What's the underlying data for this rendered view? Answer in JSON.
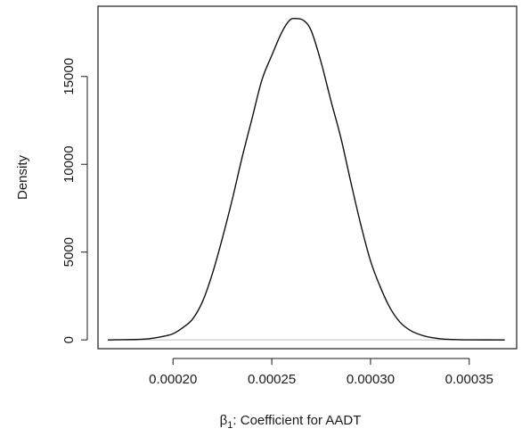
{
  "chart_data": {
    "type": "line",
    "title": "",
    "xlabel_symbol": "β",
    "xlabel_subscript": "1",
    "xlabel_rest": ": Coefficient for AADT",
    "ylabel": "Density",
    "xlim": [
      0.000162,
      0.000374
    ],
    "ylim": [
      -500,
      19000
    ],
    "x_ticks": [
      0.0002,
      0.00025,
      0.0003,
      0.00035
    ],
    "x_tick_labels": [
      "0.00020",
      "0.00025",
      "0.00030",
      "0.00035"
    ],
    "y_ticks": [
      0,
      5000,
      10000,
      15000
    ],
    "y_tick_labels": [
      "0",
      "5000",
      "10000",
      "15000"
    ],
    "zero_line_color": "#bdbdbd",
    "line_color": "#111111",
    "grid": false,
    "series": [
      {
        "x": [
          0.000167,
          0.00018,
          0.000186,
          0.00019,
          0.000195,
          0.0002,
          0.000205,
          0.00021,
          0.000215,
          0.00022,
          0.000225,
          0.00023,
          0.000235,
          0.00024,
          0.000245,
          0.00025,
          0.000255,
          0.000259,
          0.000262,
          0.000266,
          0.00027,
          0.000275,
          0.00028,
          0.000285,
          0.00029,
          0.000295,
          0.0003,
          0.000305,
          0.00031,
          0.000315,
          0.00032,
          0.000325,
          0.00033,
          0.000335,
          0.00034,
          0.00035,
          0.000368
        ],
        "y": [
          0,
          20,
          50,
          100,
          200,
          350,
          700,
          1200,
          2200,
          3800,
          5800,
          8000,
          10400,
          12600,
          14800,
          16200,
          17500,
          18200,
          18300,
          18200,
          17600,
          15800,
          13600,
          11500,
          9000,
          6600,
          4500,
          3000,
          1800,
          1000,
          550,
          300,
          150,
          70,
          30,
          5,
          0
        ]
      }
    ]
  }
}
